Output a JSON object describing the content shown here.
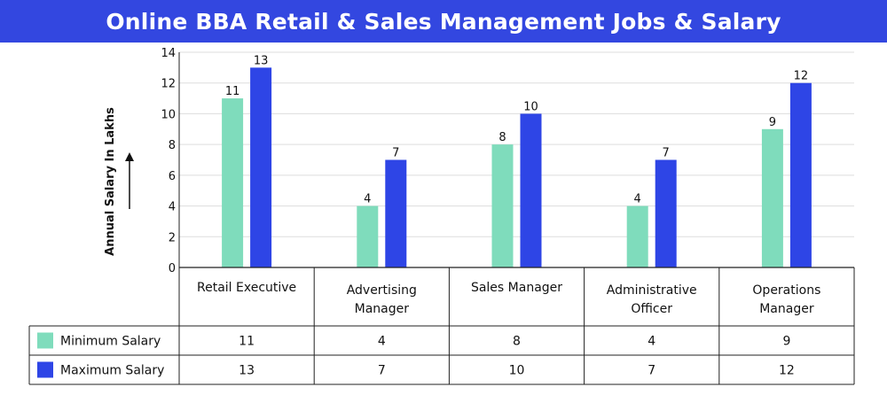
{
  "title": "Online BBA Retail & Sales Management Jobs & Salary",
  "colors": {
    "header_bg": "#3347e0",
    "minimum": "#7fdcbc",
    "maximum": "#2e45e6"
  },
  "chart_data": {
    "type": "bar",
    "title": "Online BBA Retail & Sales Management Jobs & Salary",
    "xlabel": "",
    "ylabel": "Annual Salary In Lakhs",
    "ylim": [
      0,
      14
    ],
    "yticks": [
      0,
      2,
      4,
      6,
      8,
      10,
      12,
      14
    ],
    "grid": true,
    "categories": [
      [
        "Retail Executive"
      ],
      [
        "Advertising",
        "Manager"
      ],
      [
        "Sales Manager"
      ],
      [
        "Administrative",
        "Officer"
      ],
      [
        "Operations",
        "Manager"
      ]
    ],
    "series": [
      {
        "name": "Minimum Salary",
        "values": [
          11,
          4,
          8,
          4,
          9
        ],
        "color": "#7fdcbc"
      },
      {
        "name": "Maximum Salary",
        "values": [
          13,
          7,
          10,
          7,
          12
        ],
        "color": "#2e45e6"
      }
    ],
    "legend": "data-table-below"
  }
}
